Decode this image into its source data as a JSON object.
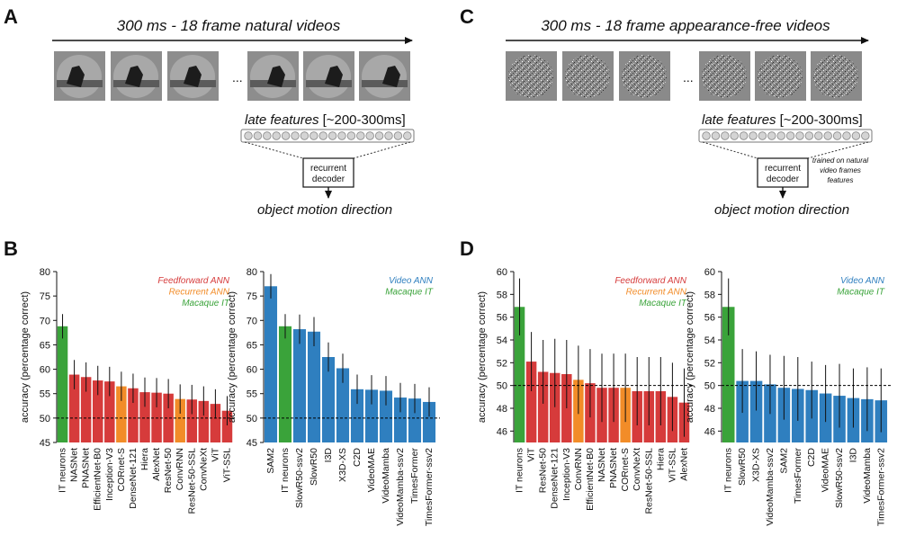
{
  "panels": {
    "A": {
      "letter": "A",
      "title": "300 ms - 18 frame natural videos",
      "ellipsis": "...",
      "late_features_label": "late features",
      "late_features_range": "[~200-300ms]",
      "decoder_line1": "recurrent",
      "decoder_line2": "decoder",
      "output_label": "object motion direction"
    },
    "B": {
      "letter": "B"
    },
    "C": {
      "letter": "C",
      "title": "300 ms - 18 frame appearance-free videos",
      "ellipsis": "...",
      "late_features_label": "late features",
      "late_features_range": "[~200-300ms]",
      "decoder_line1": "recurrent",
      "decoder_line2": "decoder",
      "note_line1": "trained on natural",
      "note_line2": "video frames",
      "note_line3": "features",
      "output_label": "object motion direction"
    },
    "D": {
      "letter": "D"
    }
  },
  "colors": {
    "feedforward": "#d63b3b",
    "recurrent": "#f28c28",
    "macaque": "#3aa33a",
    "video": "#2f7fbf",
    "text": "#111111",
    "chance_line": "#000000"
  },
  "chart_data": [
    {
      "id": "B-left",
      "type": "bar",
      "ylabel": "accuracy (percentage correct)",
      "ylim": [
        45,
        80
      ],
      "yticks": [
        45,
        50,
        55,
        60,
        65,
        70,
        75,
        80
      ],
      "chance": 50,
      "legend": [
        {
          "label": "Feedforward ANN",
          "group": "feedforward"
        },
        {
          "label": "Recurrent ANN",
          "group": "recurrent"
        },
        {
          "label": "Macaque IT",
          "group": "macaque"
        }
      ],
      "categories": [
        "IT neurons",
        "NASNet",
        "PNASNet",
        "EfficientNet-B0",
        "Inception-V3",
        "CORnet-S",
        "DenseNet-121",
        "Hiera",
        "AlexNet",
        "ResNet-50",
        "ConvRNN",
        "ResNet-50-SSL",
        "ConvNeXt",
        "ViT",
        "ViT-SSL"
      ],
      "groups": [
        "macaque",
        "feedforward",
        "feedforward",
        "feedforward",
        "feedforward",
        "recurrent",
        "feedforward",
        "feedforward",
        "feedforward",
        "feedforward",
        "recurrent",
        "feedforward",
        "feedforward",
        "feedforward",
        "feedforward"
      ],
      "values": [
        68.8,
        58.9,
        58.4,
        57.7,
        57.5,
        56.5,
        56.1,
        55.3,
        55.2,
        55.0,
        53.9,
        53.8,
        53.5,
        52.9,
        51.5
      ],
      "errors": [
        2.5,
        3.0,
        3.0,
        3.0,
        3.0,
        3.0,
        3.0,
        3.0,
        3.0,
        3.0,
        3.0,
        3.0,
        3.0,
        3.0,
        3.0
      ]
    },
    {
      "id": "B-right",
      "type": "bar",
      "ylabel": "accuracy (percentage correct)",
      "ylim": [
        45,
        80
      ],
      "yticks": [
        45,
        50,
        55,
        60,
        65,
        70,
        75,
        80
      ],
      "chance": 50,
      "legend": [
        {
          "label": "Video ANN",
          "group": "video"
        },
        {
          "label": "Macaque IT",
          "group": "macaque"
        }
      ],
      "categories": [
        "SAM2",
        "IT neurons",
        "SlowR50-ssv2",
        "SlowR50",
        "I3D",
        "X3D-XS",
        "C2D",
        "VideoMAE",
        "VideoMamba",
        "VideoMamba-ssv2",
        "TimesFormer",
        "TimesFormer-ssv2"
      ],
      "groups": [
        "video",
        "macaque",
        "video",
        "video",
        "video",
        "video",
        "video",
        "video",
        "video",
        "video",
        "video",
        "video"
      ],
      "values": [
        77.0,
        68.8,
        68.2,
        67.7,
        62.5,
        60.2,
        55.9,
        55.8,
        55.6,
        54.2,
        54.0,
        53.3
      ],
      "errors": [
        2.5,
        2.5,
        3.0,
        3.0,
        3.0,
        3.0,
        3.0,
        3.0,
        3.0,
        3.0,
        3.0,
        3.0
      ]
    },
    {
      "id": "D-left",
      "type": "bar",
      "ylabel": "accuracy (percentage correct)",
      "ylim": [
        45,
        60
      ],
      "yticks": [
        46,
        48,
        50,
        52,
        54,
        56,
        58,
        60
      ],
      "chance": 50,
      "legend": [
        {
          "label": "Feedforward ANN",
          "group": "feedforward"
        },
        {
          "label": "Recurrent ANN",
          "group": "recurrent"
        },
        {
          "label": "Macaque IT",
          "group": "macaque"
        }
      ],
      "categories": [
        "IT neurons",
        "ViT",
        "ResNet-50",
        "DenseNet-121",
        "Inception-V3",
        "ConvRNN",
        "EfficientNet-B0",
        "NASNet",
        "PNASNet",
        "CORnet-S",
        "ConvNeXt",
        "ResNet-50-SSL",
        "Hiera",
        "ViT-SSL",
        "AlexNet"
      ],
      "groups": [
        "macaque",
        "feedforward",
        "feedforward",
        "feedforward",
        "feedforward",
        "recurrent",
        "feedforward",
        "feedforward",
        "feedforward",
        "recurrent",
        "feedforward",
        "feedforward",
        "feedforward",
        "feedforward",
        "feedforward"
      ],
      "values": [
        56.9,
        52.1,
        51.2,
        51.1,
        51.0,
        50.5,
        50.2,
        49.8,
        49.8,
        49.8,
        49.5,
        49.5,
        49.5,
        49.0,
        48.5
      ],
      "errors": [
        2.5,
        2.6,
        2.8,
        3.0,
        3.0,
        3.0,
        3.0,
        3.0,
        3.0,
        3.0,
        3.0,
        3.0,
        3.0,
        3.0,
        3.0
      ]
    },
    {
      "id": "D-right",
      "type": "bar",
      "ylabel": "accuracy (percentage correct)",
      "ylim": [
        45,
        60
      ],
      "yticks": [
        46,
        48,
        50,
        52,
        54,
        56,
        58,
        60
      ],
      "chance": 50,
      "legend": [
        {
          "label": "Video ANN",
          "group": "video"
        },
        {
          "label": "Macaque IT",
          "group": "macaque"
        }
      ],
      "categories": [
        "IT neurons",
        "SlowR50",
        "X3D-XS",
        "VideoMamba-ssv2",
        "SAM2",
        "TimesFormer",
        "C2D",
        "VideoMAE",
        "SlowR50-ssv2",
        "I3D",
        "VideoMamba",
        "TimesFormer-ssv2"
      ],
      "groups": [
        "macaque",
        "video",
        "video",
        "video",
        "video",
        "video",
        "video",
        "video",
        "video",
        "video",
        "video",
        "video"
      ],
      "values": [
        56.9,
        50.4,
        50.4,
        50.1,
        49.8,
        49.7,
        49.6,
        49.3,
        49.1,
        48.9,
        48.8,
        48.7
      ],
      "errors": [
        2.5,
        2.8,
        2.6,
        2.6,
        2.8,
        2.8,
        2.5,
        2.5,
        2.8,
        2.6,
        2.8,
        2.8
      ]
    }
  ]
}
